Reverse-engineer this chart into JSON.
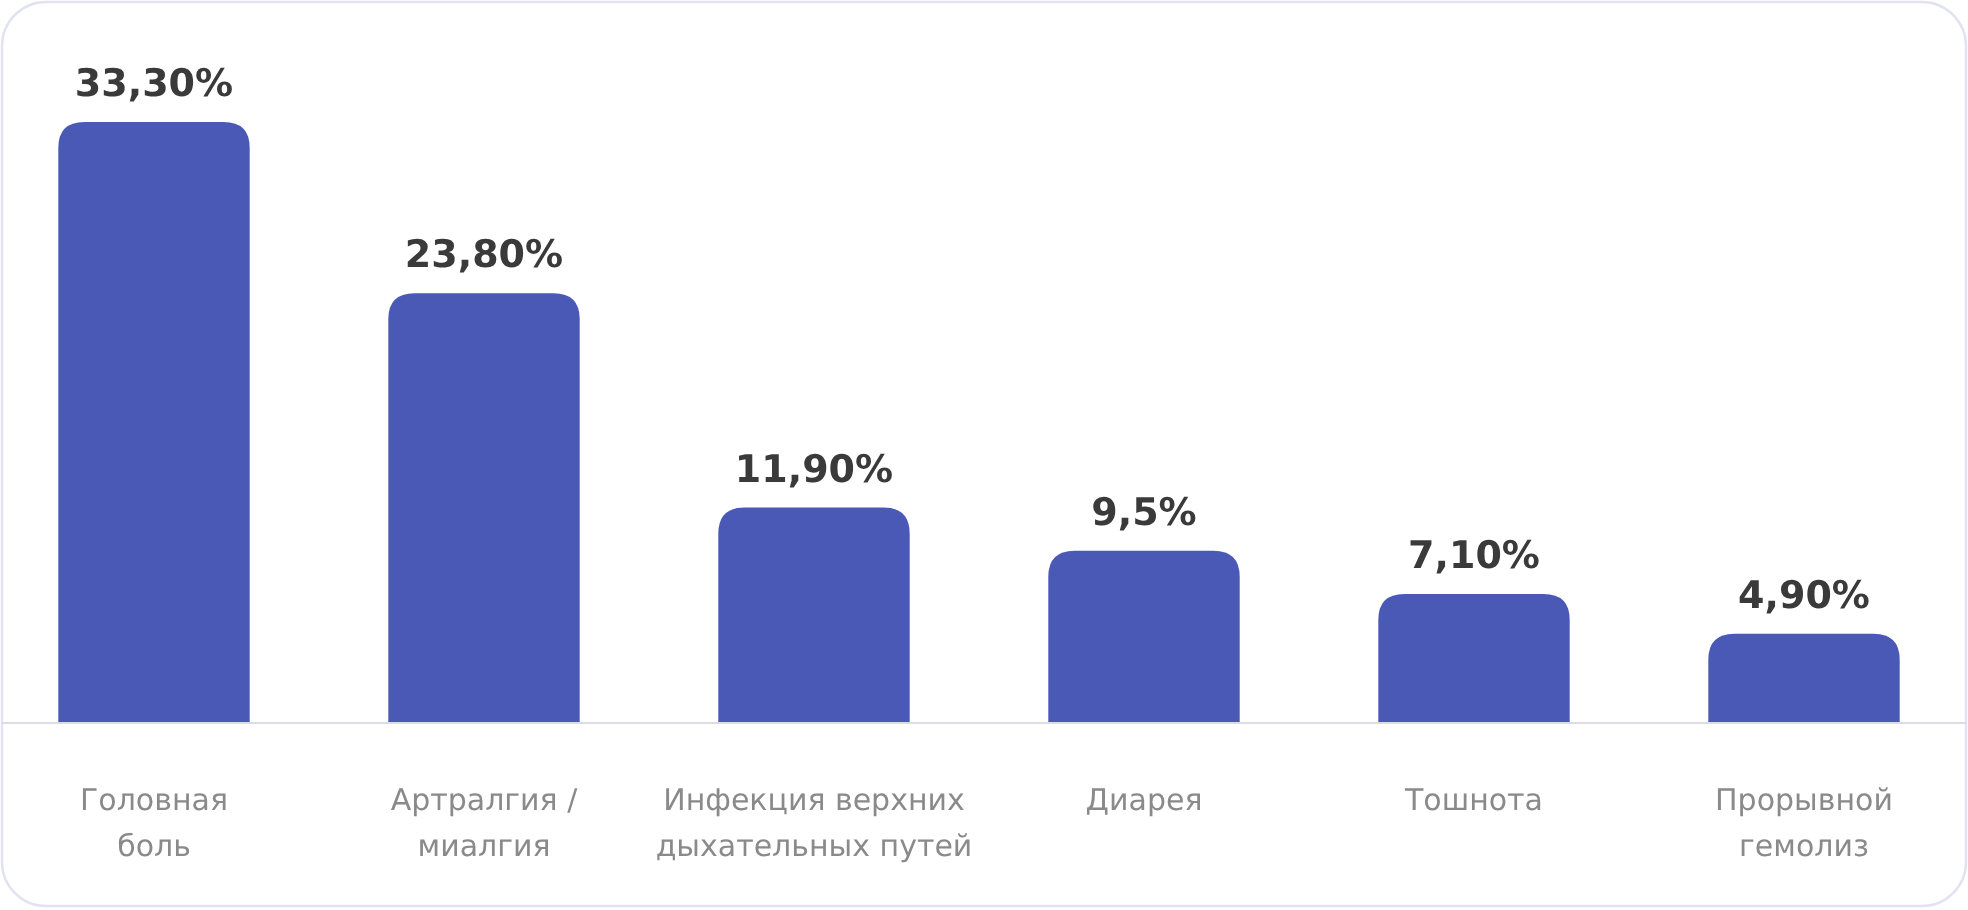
{
  "chart_data": {
    "type": "bar",
    "categories": [
      "Головная боль",
      "Артралгия / миалгия",
      "Инфекция верхних дыхательных путей",
      "Диарея",
      "Тошнота",
      "Прорывной гемолиз"
    ],
    "values": [
      33.3,
      23.8,
      11.9,
      9.5,
      7.1,
      4.9
    ],
    "value_labels": [
      "33,30%",
      "23,80%",
      "11,90%",
      "9,5%",
      "7,10%",
      "4,90%"
    ],
    "color": "#4a59b5"
  }
}
